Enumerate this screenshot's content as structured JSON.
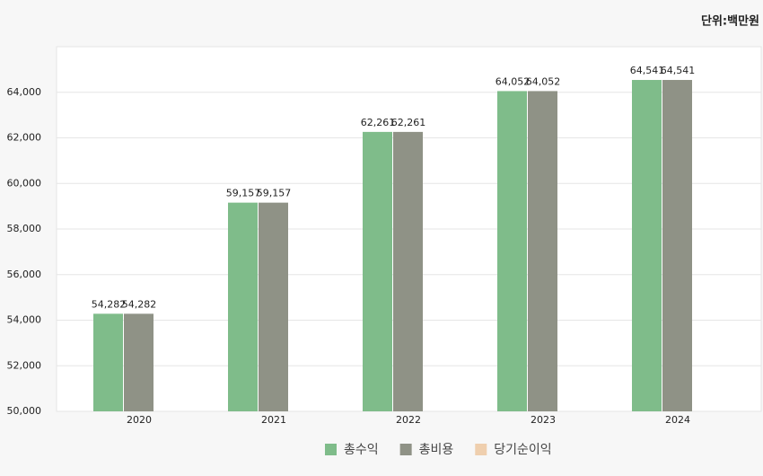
{
  "chart_data": {
    "type": "bar",
    "unit_label": "단위:백만원",
    "categories": [
      "2020",
      "2021",
      "2022",
      "2023",
      "2024"
    ],
    "series": [
      {
        "name": "총수익",
        "color": "#7fbc8a",
        "values": [
          54282,
          59157,
          62261,
          64052,
          64541
        ],
        "value_labels": [
          "54,282",
          "59,157",
          "62,261",
          "64,052",
          "64,541"
        ]
      },
      {
        "name": "총비용",
        "color": "#8f9286",
        "values": [
          54282,
          59157,
          62261,
          64052,
          64541
        ],
        "value_labels": [
          "54,282",
          "59,157",
          "62,261",
          "64,052",
          "64,541"
        ]
      },
      {
        "name": "당기순이익",
        "color": "#efcfae",
        "values": [
          null,
          null,
          null,
          null,
          null
        ]
      }
    ],
    "ylim": [
      50000,
      66000
    ],
    "yticks": [
      {
        "value": 50000,
        "label": "50,000"
      },
      {
        "value": 52000,
        "label": "52,000"
      },
      {
        "value": 54000,
        "label": "54,000"
      },
      {
        "value": 56000,
        "label": "56,000"
      },
      {
        "value": 58000,
        "label": "58,000"
      },
      {
        "value": 60000,
        "label": "60,000"
      },
      {
        "value": 62000,
        "label": "62,000"
      },
      {
        "value": 64000,
        "label": "64,000"
      }
    ],
    "grid": true,
    "legend": "bottom"
  }
}
